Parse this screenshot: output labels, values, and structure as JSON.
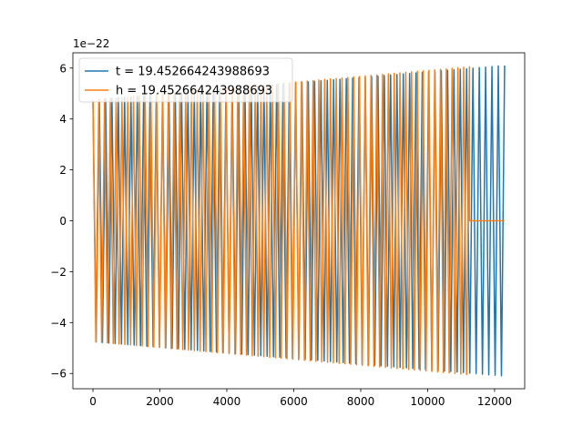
{
  "chart_data": {
    "type": "line",
    "title": "",
    "xlabel": "",
    "ylabel": "",
    "offset_text": "1e−22",
    "xlim": [
      -600,
      12900
    ],
    "ylim": [
      -6.6,
      6.6
    ],
    "y_scale_exponent": -22,
    "x_ticks": [
      0,
      2000,
      4000,
      6000,
      8000,
      10000,
      12000
    ],
    "x_tick_labels": [
      "0",
      "2000",
      "4000",
      "6000",
      "8000",
      "10000",
      "12000"
    ],
    "y_ticks": [
      -6,
      -4,
      -2,
      0,
      2,
      4,
      6
    ],
    "y_tick_labels": [
      "−6",
      "−4",
      "−2",
      "0",
      "2",
      "4",
      "6"
    ],
    "grid": false,
    "legend_position": "upper-left",
    "series": [
      {
        "name": "t = 19.452664243988693",
        "color": "#1f77b4",
        "description": "chirp oscillation, amplitude growing from ~4.7e-22 to ~6.1e-22",
        "x_range": [
          0,
          12300
        ],
        "amplitude_start": 4.75,
        "amplitude_end": 6.1,
        "visible_cycles": 130
      },
      {
        "name": "h = 19.452664243988693",
        "color": "#ff7f0e",
        "description": "oscillation ending near x=11250, then flat at 0",
        "x_range": [
          0,
          11250
        ],
        "flat_after": 11250,
        "flat_until": 12300,
        "amplitude_start": 4.75,
        "amplitude_end": 6.05,
        "visible_cycles": 130
      }
    ]
  }
}
